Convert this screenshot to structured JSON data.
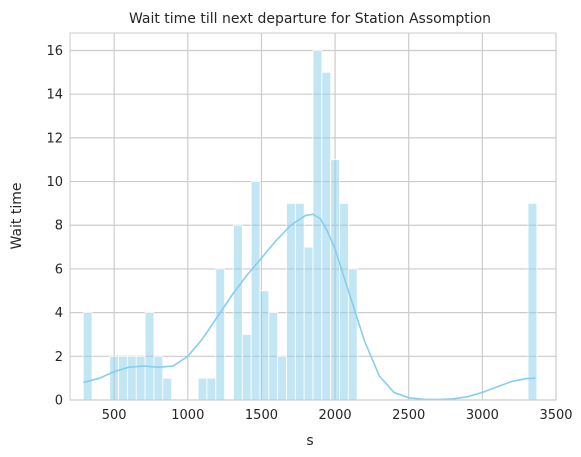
{
  "chart_data": {
    "type": "bar",
    "title": "Wait time till next departure for Station Assomption",
    "xlabel": "s",
    "ylabel": "Wait time",
    "xlim": [
      200,
      3500
    ],
    "ylim": [
      0,
      16.8
    ],
    "xticks": [
      500,
      1000,
      1500,
      2000,
      2500,
      3000,
      3500
    ],
    "yticks": [
      0,
      2,
      4,
      6,
      8,
      10,
      12,
      14,
      16
    ],
    "grid": true,
    "bin_width": 60,
    "bar_color": "#87ceeb",
    "kde_color": "#87ceeb",
    "bins": [
      {
        "x0": 290,
        "count": 4
      },
      {
        "x0": 470,
        "count": 2
      },
      {
        "x0": 530,
        "count": 2
      },
      {
        "x0": 590,
        "count": 2
      },
      {
        "x0": 650,
        "count": 2
      },
      {
        "x0": 710,
        "count": 4
      },
      {
        "x0": 770,
        "count": 2
      },
      {
        "x0": 830,
        "count": 1
      },
      {
        "x0": 1070,
        "count": 1
      },
      {
        "x0": 1130,
        "count": 1
      },
      {
        "x0": 1190,
        "count": 6
      },
      {
        "x0": 1310,
        "count": 8
      },
      {
        "x0": 1370,
        "count": 3
      },
      {
        "x0": 1430,
        "count": 10
      },
      {
        "x0": 1490,
        "count": 5
      },
      {
        "x0": 1550,
        "count": 4
      },
      {
        "x0": 1610,
        "count": 2
      },
      {
        "x0": 1670,
        "count": 9
      },
      {
        "x0": 1730,
        "count": 9
      },
      {
        "x0": 1790,
        "count": 7
      },
      {
        "x0": 1850,
        "count": 16
      },
      {
        "x0": 1910,
        "count": 15
      },
      {
        "x0": 1970,
        "count": 11
      },
      {
        "x0": 2030,
        "count": 9
      },
      {
        "x0": 2090,
        "count": 6
      },
      {
        "x0": 3310,
        "count": 9
      }
    ],
    "kde": {
      "x": [
        290,
        400,
        500,
        600,
        700,
        800,
        900,
        1000,
        1100,
        1200,
        1300,
        1400,
        1500,
        1600,
        1700,
        1800,
        1850,
        1900,
        1950,
        2000,
        2100,
        2200,
        2300,
        2400,
        2500,
        2600,
        2700,
        2800,
        2900,
        3000,
        3100,
        3200,
        3300,
        3360
      ],
      "y": [
        0.8,
        1.0,
        1.3,
        1.5,
        1.55,
        1.5,
        1.55,
        2.0,
        2.8,
        3.8,
        4.8,
        5.7,
        6.5,
        7.3,
        8.0,
        8.45,
        8.5,
        8.3,
        7.7,
        6.9,
        4.8,
        2.7,
        1.1,
        0.35,
        0.1,
        0.03,
        0.02,
        0.05,
        0.15,
        0.35,
        0.6,
        0.85,
        0.98,
        1.0
      ]
    }
  }
}
